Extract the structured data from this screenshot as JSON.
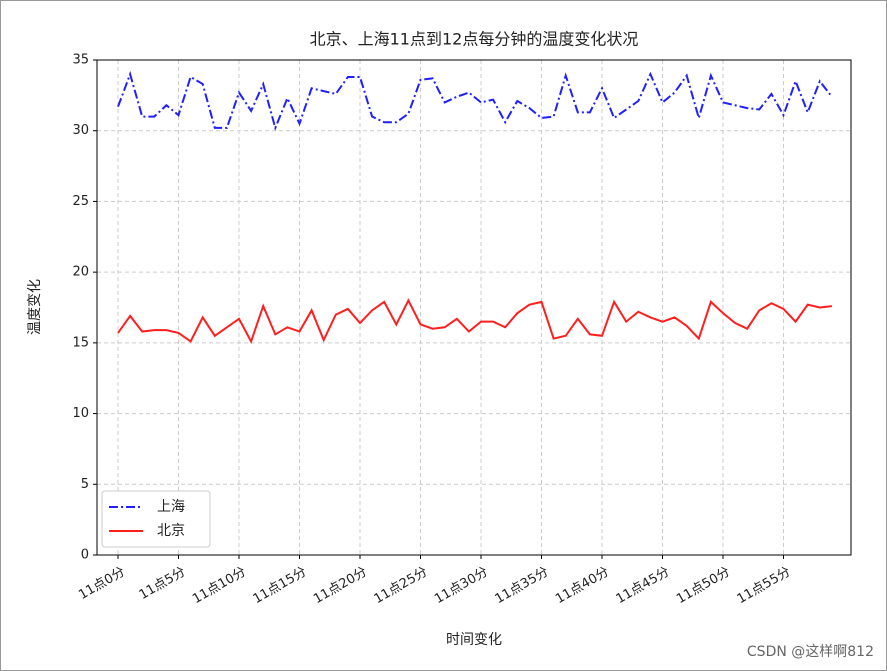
{
  "chart_data": {
    "type": "line",
    "title": "北京、上海11点到12点每分钟的温度变化状况",
    "x_label": "时间变化",
    "y_label": "温度变化",
    "categories": [
      "11点0分",
      null,
      null,
      null,
      null,
      "11点5分",
      null,
      null,
      null,
      null,
      "11点10分",
      null,
      null,
      null,
      null,
      "11点15分",
      null,
      null,
      null,
      null,
      "11点20分",
      null,
      null,
      null,
      null,
      "11点25分",
      null,
      null,
      null,
      null,
      "11点30分",
      null,
      null,
      null,
      null,
      "11点35分",
      null,
      null,
      null,
      null,
      "11点40分",
      null,
      null,
      null,
      null,
      "11点45分",
      null,
      null,
      null,
      null,
      "11点50分",
      null,
      null,
      null,
      null,
      "11点55分",
      null,
      null,
      null,
      null
    ],
    "series": [
      {
        "name": "上海",
        "color": "#1f1fff",
        "linestyle": "dashdot",
        "values": [
          31.7,
          34.0,
          31.0,
          31.0,
          31.8,
          31.1,
          33.8,
          33.3,
          30.2,
          30.2,
          32.7,
          31.4,
          33.3,
          30.2,
          32.3,
          30.5,
          33.0,
          32.8,
          32.6,
          33.8,
          33.8,
          31.0,
          30.6,
          30.6,
          31.2,
          33.6,
          33.7,
          32.0,
          32.4,
          32.7,
          32.0,
          32.2,
          30.6,
          32.1,
          31.6,
          30.9,
          31.0,
          33.9,
          31.3,
          31.3,
          33.0,
          30.9,
          31.5,
          32.1,
          34.0,
          32.0,
          32.7,
          33.9,
          30.9,
          33.9,
          32.0,
          31.8,
          31.6,
          31.5,
          32.6,
          31.1,
          33.5,
          31.3,
          33.5,
          32.4
        ]
      },
      {
        "name": "北京",
        "color": "#ff1f1f",
        "linestyle": "solid",
        "values": [
          15.7,
          16.9,
          15.8,
          15.9,
          15.9,
          15.7,
          15.1,
          16.8,
          15.5,
          16.1,
          16.7,
          15.1,
          17.6,
          15.6,
          16.1,
          15.8,
          17.3,
          15.2,
          17.0,
          17.4,
          16.4,
          17.3,
          17.9,
          16.3,
          18.0,
          16.3,
          16.0,
          16.1,
          16.7,
          15.8,
          16.5,
          16.5,
          16.1,
          17.1,
          17.7,
          17.9,
          15.3,
          15.5,
          16.7,
          15.6,
          15.5,
          17.9,
          16.5,
          17.2,
          16.8,
          16.5,
          16.8,
          16.2,
          15.3,
          17.9,
          17.1,
          16.4,
          16.0,
          17.3,
          17.8,
          17.4,
          16.5,
          17.7,
          17.5,
          17.6
        ]
      }
    ],
    "ylim": [
      0,
      35
    ],
    "yticks": [
      0,
      5,
      10,
      15,
      20,
      25,
      30,
      35
    ],
    "grid": true,
    "legend": "lower left"
  },
  "watermark": "CSDN @这样啊812"
}
